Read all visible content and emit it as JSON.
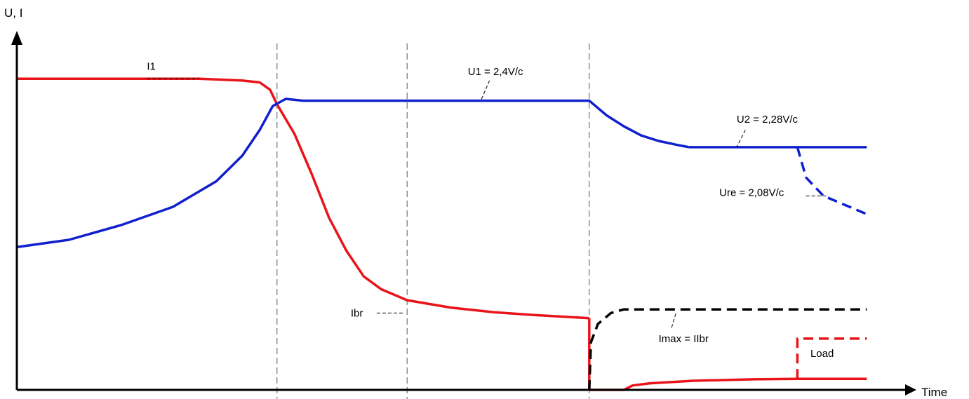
{
  "chart_data": {
    "type": "line",
    "title": "",
    "xlabel": "Time",
    "ylabel": "U, I",
    "grid": false,
    "xlim": [
      0,
      100
    ],
    "ylim": [
      0,
      100
    ],
    "phase_markers": [
      30,
      45,
      66
    ],
    "series": [
      {
        "name": "I1",
        "color": "#e8141a",
        "style": "solid",
        "points": [
          [
            0,
            85
          ],
          [
            14,
            85
          ],
          [
            21,
            85
          ],
          [
            26,
            84.5
          ],
          [
            28,
            84
          ],
          [
            29.2,
            82
          ],
          [
            30,
            78
          ],
          [
            32,
            70
          ],
          [
            34,
            59
          ],
          [
            36,
            47
          ],
          [
            38,
            38
          ],
          [
            40,
            31
          ],
          [
            42,
            27.5
          ],
          [
            45,
            24.5
          ],
          [
            50,
            22.5
          ],
          [
            55,
            21.2
          ],
          [
            60,
            20.4
          ],
          [
            66,
            19.6
          ]
        ]
      },
      {
        "name": "",
        "color": "#e8141a",
        "style": "solid",
        "points": [
          [
            66,
            19.6
          ],
          [
            66,
            0
          ],
          [
            70,
            0
          ],
          [
            71,
            1.2
          ],
          [
            73,
            1.8
          ],
          [
            78,
            2.5
          ],
          [
            85,
            2.9
          ],
          [
            90,
            3.0
          ],
          [
            90,
            3.0
          ],
          [
            98,
            3.0
          ]
        ]
      },
      {
        "name": "Load",
        "color": "#e8141a",
        "style": "dashed",
        "points": [
          [
            90,
            3.0
          ],
          [
            90,
            14
          ],
          [
            98,
            14
          ]
        ]
      },
      {
        "name": "U1 = 2,4V/c",
        "color": "#1020cc",
        "style": "solid",
        "points": [
          [
            0,
            39
          ],
          [
            6,
            41
          ],
          [
            12,
            45
          ],
          [
            18,
            50
          ],
          [
            23,
            57
          ],
          [
            26,
            64
          ],
          [
            28,
            71
          ],
          [
            29.5,
            77.5
          ],
          [
            31,
            79.5
          ],
          [
            33,
            79
          ],
          [
            45,
            79
          ],
          [
            55,
            79
          ],
          [
            66,
            79
          ],
          [
            68,
            75
          ],
          [
            70,
            72
          ],
          [
            72,
            69.5
          ],
          [
            74,
            68
          ],
          [
            76,
            67
          ],
          [
            77.5,
            66.3
          ]
        ]
      },
      {
        "name": "U2 = 2,28V/c",
        "color": "#1020cc",
        "style": "solid",
        "points": [
          [
            77.5,
            66.3
          ],
          [
            85,
            66.3
          ],
          [
            90,
            66.3
          ],
          [
            98,
            66.3
          ]
        ]
      },
      {
        "name": "Ure = 2,08V/c",
        "color": "#1020cc",
        "style": "dashed",
        "points": [
          [
            90,
            66.3
          ],
          [
            91,
            58
          ],
          [
            93,
            53
          ],
          [
            98,
            48
          ]
        ]
      },
      {
        "name": "Imax = IIbr",
        "color": "#000000",
        "style": "dashed",
        "points": [
          [
            66,
            0
          ],
          [
            66.2,
            13
          ],
          [
            67,
            18
          ],
          [
            68.5,
            21
          ],
          [
            70,
            22
          ],
          [
            98,
            22
          ]
        ]
      }
    ],
    "annotations": [
      {
        "text": "I1",
        "x": 15,
        "y": 87.5,
        "leader": [
          [
            15,
            85
          ],
          [
            21,
            85
          ]
        ]
      },
      {
        "text": "U1 = 2,4V/c",
        "x": 52,
        "y": 86,
        "leader": [
          [
            54.5,
            84.5
          ],
          [
            53.5,
            79
          ]
        ]
      },
      {
        "text": "U2 = 2,28V/c",
        "x": 83,
        "y": 73,
        "leader": [
          [
            84,
            71
          ],
          [
            83,
            66.3
          ]
        ]
      },
      {
        "text": "Ure = 2,08V/c",
        "x": 81,
        "y": 53,
        "leader": [
          [
            91,
            53
          ],
          [
            93.5,
            53
          ]
        ]
      },
      {
        "text": "Ibr",
        "x": 38.5,
        "y": 20,
        "leader": [
          [
            41.5,
            21
          ],
          [
            44.5,
            21
          ]
        ]
      },
      {
        "text": "Imax = IIbr",
        "x": 74,
        "y": 13,
        "leader": [
          [
            75.5,
            17
          ],
          [
            76,
            21
          ]
        ]
      },
      {
        "text": "Load",
        "x": 91.5,
        "y": 9,
        "leader": null
      }
    ]
  }
}
